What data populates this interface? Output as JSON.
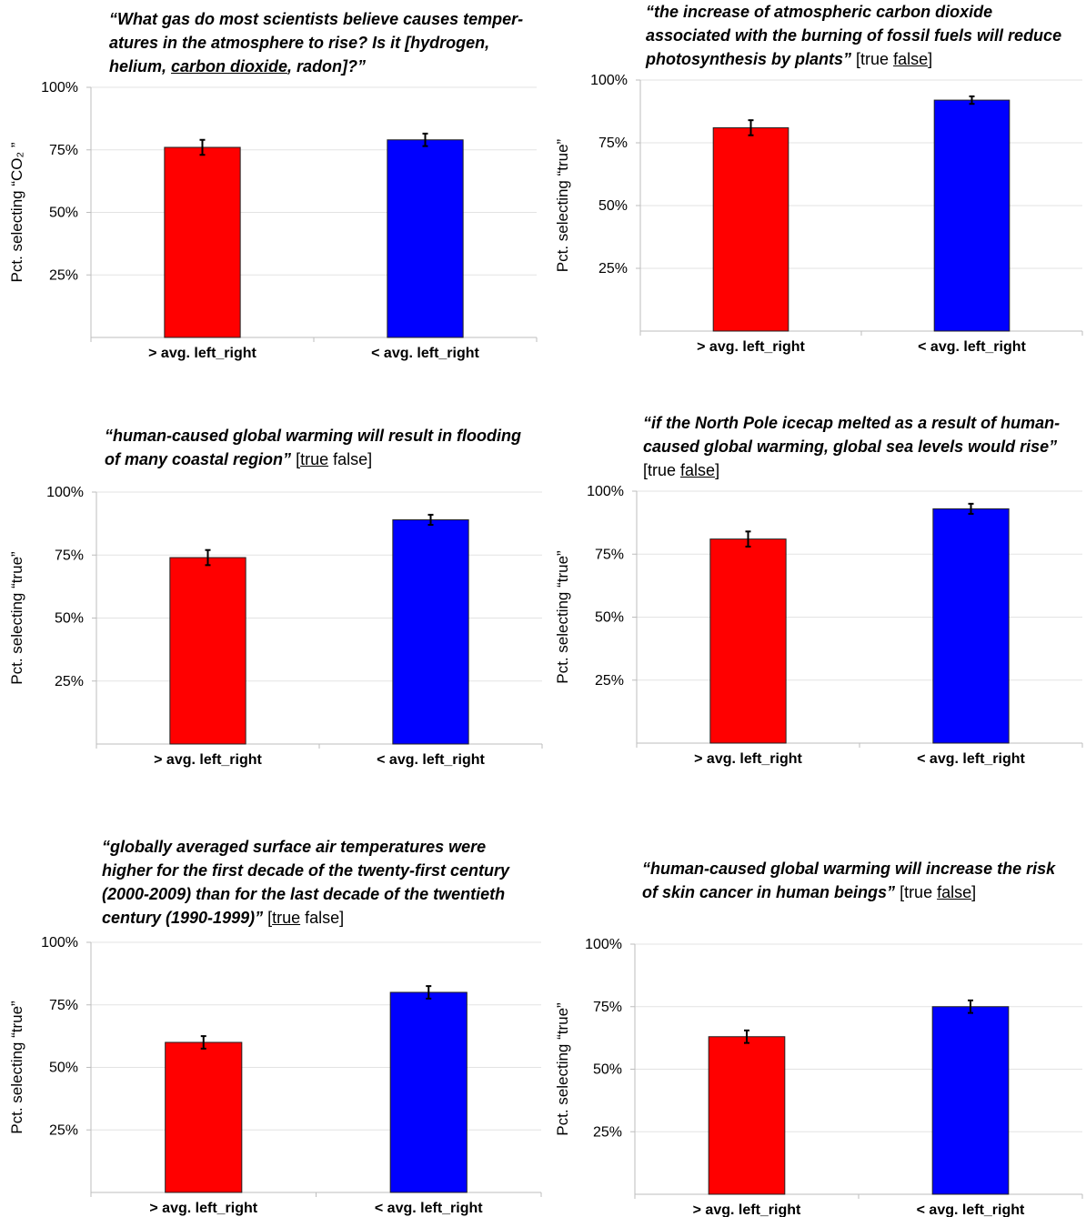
{
  "chart_data": [
    {
      "type": "bar",
      "title": "“What gas do most scientists believe causes temperatures in the atmosphere to rise? Is it [hydrogen, helium, carbon dioxide, radon]?”",
      "title_lines": [
        [
          {
            "t": "“What gas do most scientists believe causes temper-",
            "s": "q"
          }
        ],
        [
          {
            "t": "atures in the atmosphere to rise? Is it [hydrogen,",
            "s": "q"
          }
        ],
        [
          {
            "t": "helium, ",
            "s": "q"
          },
          {
            "t": "carbon dioxide",
            "s": "qu"
          },
          {
            "t": ", radon]?”",
            "s": "q"
          }
        ]
      ],
      "ylabel": "Pct. selecting “CO₂ ”",
      "ylim": [
        0,
        100
      ],
      "yticks": [
        "25%",
        "50%",
        "75%",
        "100%"
      ],
      "categories": [
        "> avg. left_right",
        "< avg. left_right"
      ],
      "values": [
        76,
        79
      ],
      "errors": [
        3,
        2.5
      ],
      "colors": [
        "#ff0000",
        "#0000ff"
      ]
    },
    {
      "type": "bar",
      "title": "“the increase of atmospheric carbon dioxide associated with the burning of fossil fuels will reduce photosynthesis by plants” [true false]",
      "title_lines": [
        [
          {
            "t": "“the increase of atmospheric carbon dioxide",
            "s": "q"
          }
        ],
        [
          {
            "t": "associated with the burning of fossil fuels will reduce",
            "s": "q"
          }
        ],
        [
          {
            "t": "photosynthesis by plants”",
            "s": "q"
          },
          {
            "t": " [true ",
            "s": "n"
          },
          {
            "t": "false",
            "s": "u"
          },
          {
            "t": "]",
            "s": "n"
          }
        ]
      ],
      "ylabel": "Pct. selecting “true”",
      "ylim": [
        0,
        100
      ],
      "yticks": [
        "25%",
        "50%",
        "75%",
        "100%"
      ],
      "categories": [
        "> avg. left_right",
        "< avg. left_right"
      ],
      "values": [
        81,
        92
      ],
      "errors": [
        3,
        1.5
      ],
      "colors": [
        "#ff0000",
        "#0000ff"
      ]
    },
    {
      "type": "bar",
      "title": "“human-caused global warming will result in flooding of many coastal region” [true false]",
      "title_lines": [
        [
          {
            "t": "“human-caused global warming will result in flooding",
            "s": "q"
          }
        ],
        [
          {
            "t": "of many coastal region”",
            "s": "q"
          },
          {
            "t": " [",
            "s": "n"
          },
          {
            "t": "true",
            "s": "u"
          },
          {
            "t": " false]",
            "s": "n"
          }
        ]
      ],
      "ylabel": "Pct. selecting “true”",
      "ylim": [
        0,
        100
      ],
      "yticks": [
        "25%",
        "50%",
        "75%",
        "100%"
      ],
      "categories": [
        "> avg. left_right",
        "< avg. left_right"
      ],
      "values": [
        74,
        89
      ],
      "errors": [
        3,
        2
      ],
      "colors": [
        "#ff0000",
        "#0000ff"
      ]
    },
    {
      "type": "bar",
      "title": "“if the North Pole icecap melted as a result of human-caused global warming, global sea levels would rise” [true false]",
      "title_lines": [
        [
          {
            "t": "“if the North Pole icecap melted as a result of human-",
            "s": "q"
          }
        ],
        [
          {
            "t": "caused global warming, global sea levels would rise”",
            "s": "q"
          }
        ],
        [
          {
            "t": "[true ",
            "s": "n"
          },
          {
            "t": "false",
            "s": "u"
          },
          {
            "t": "]",
            "s": "n"
          }
        ]
      ],
      "ylabel": "Pct. selecting “true”",
      "ylim": [
        0,
        100
      ],
      "yticks": [
        "25%",
        "50%",
        "75%",
        "100%"
      ],
      "categories": [
        "> avg. left_right",
        "< avg. left_right"
      ],
      "values": [
        81,
        93
      ],
      "errors": [
        3,
        2
      ],
      "colors": [
        "#ff0000",
        "#0000ff"
      ]
    },
    {
      "type": "bar",
      "title": "“globally averaged surface air temperatures were higher for the first decade of the twenty-first century (2000-2009) than for the last decade of the twentieth century (1990-1999)” [true false]",
      "title_lines": [
        [
          {
            "t": "“globally averaged surface air temperatures were",
            "s": "q"
          }
        ],
        [
          {
            "t": "higher for the first decade of the twenty-first century",
            "s": "q"
          }
        ],
        [
          {
            "t": "(2000-2009)  than for the last decade of the twentieth",
            "s": "q"
          }
        ],
        [
          {
            "t": "century (1990-1999)”",
            "s": "q"
          },
          {
            "t": " [",
            "s": "n"
          },
          {
            "t": "true",
            "s": "u"
          },
          {
            "t": " false]",
            "s": "n"
          }
        ]
      ],
      "ylabel": "Pct. selecting “true”",
      "ylim": [
        0,
        100
      ],
      "yticks": [
        "25%",
        "50%",
        "75%",
        "100%"
      ],
      "categories": [
        "> avg. left_right",
        "< avg. left_right"
      ],
      "values": [
        60,
        80
      ],
      "errors": [
        2.5,
        2.5
      ],
      "colors": [
        "#ff0000",
        "#0000ff"
      ]
    },
    {
      "type": "bar",
      "title": "“human-caused global warming will increase the risk of skin cancer in human beings” [true false]",
      "title_lines": [
        [
          {
            "t": "“human-caused global warming will increase the risk",
            "s": "q"
          }
        ],
        [
          {
            "t": "of skin cancer in human beings”",
            "s": "q"
          },
          {
            "t": " [true ",
            "s": "n"
          },
          {
            "t": "false",
            "s": "u"
          },
          {
            "t": "]",
            "s": "n"
          }
        ]
      ],
      "ylabel": "Pct. selecting “true”",
      "ylim": [
        0,
        100
      ],
      "yticks": [
        "25%",
        "50%",
        "75%",
        "100%"
      ],
      "categories": [
        "> avg. left_right",
        "< avg. left_right"
      ],
      "values": [
        63,
        75
      ],
      "errors": [
        2.5,
        2.5
      ],
      "colors": [
        "#ff0000",
        "#0000ff"
      ]
    }
  ]
}
